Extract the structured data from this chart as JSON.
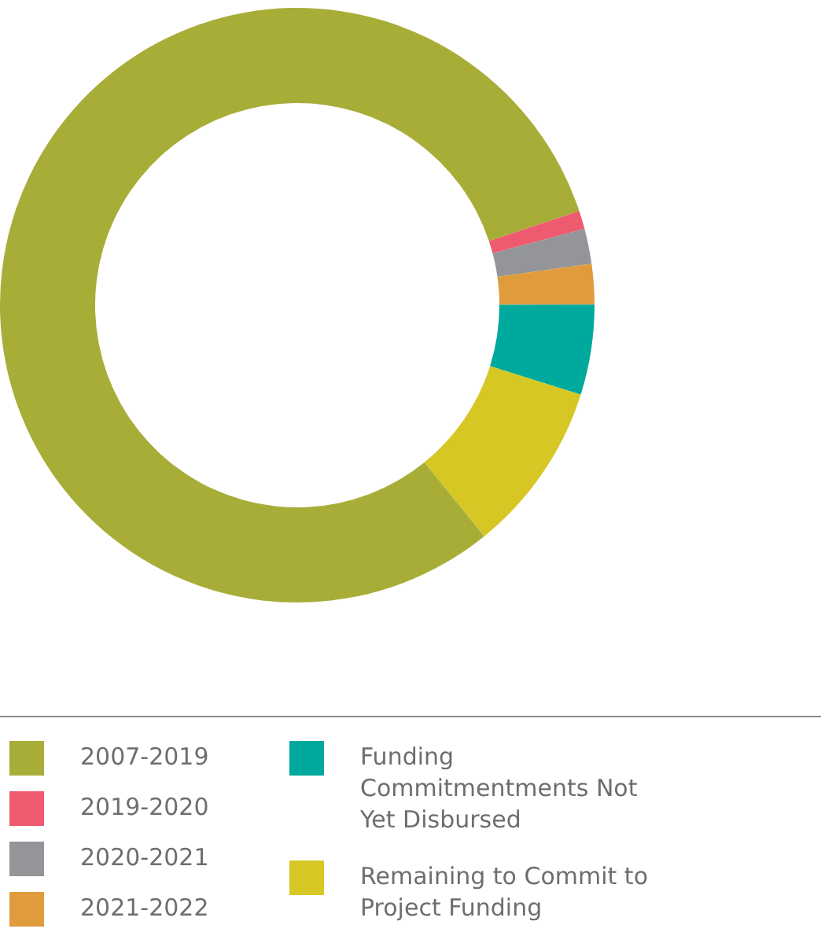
{
  "chart_data": {
    "type": "donut",
    "categories": [
      "2007-2019",
      "2019-2020",
      "2020-2021",
      "2021-2022",
      "Funding Commitmentments Not Yet Disbursed",
      "Remaining to Commit to Project Funding"
    ],
    "values": [
      80.7,
      1.0,
      1.9,
      2.2,
      4.9,
      9.3
    ],
    "colors": [
      "#a8ad38",
      "#ee5a6f",
      "#939598",
      "#e09b3d",
      "#00a99d",
      "#d6c724"
    ],
    "legend": "bottom"
  }
}
